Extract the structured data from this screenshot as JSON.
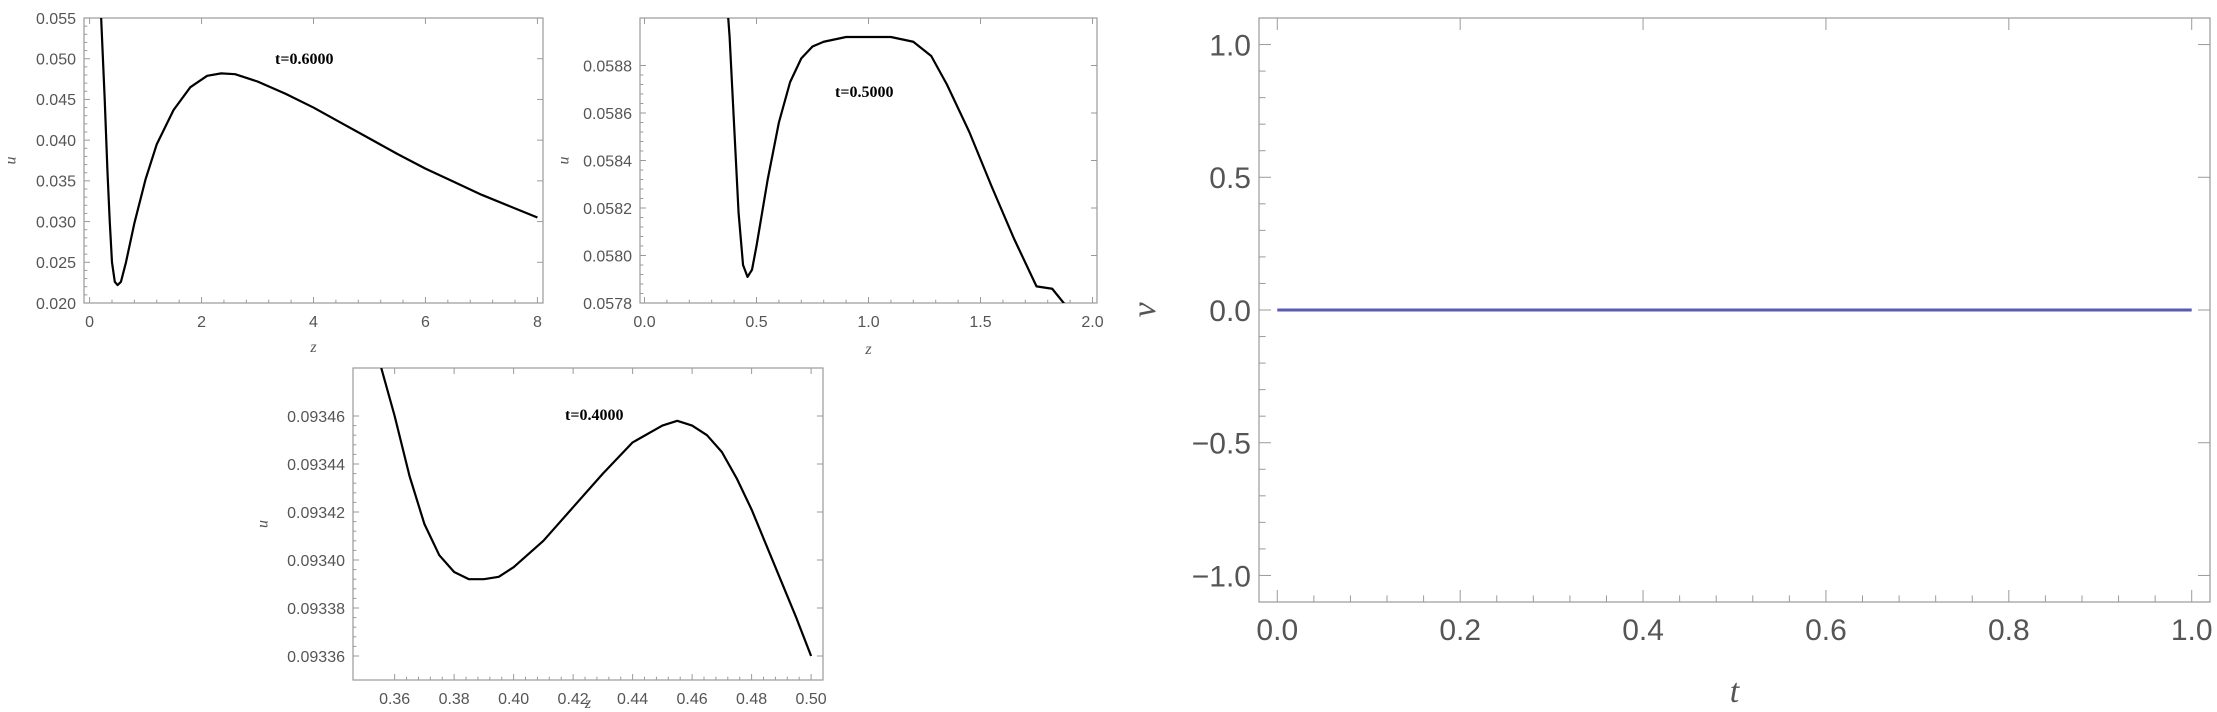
{
  "chart_data": [
    {
      "type": "line",
      "xlabel": "z",
      "ylabel": "u",
      "annotation": "t=0.6000",
      "xlim": [
        -0.1,
        8.1
      ],
      "ylim": [
        0.02,
        0.055
      ],
      "xticks": [
        0,
        2,
        4,
        6,
        8
      ],
      "xtick_labels": [
        "0",
        "2",
        "4",
        "6",
        "8"
      ],
      "yticks": [
        0.02,
        0.025,
        0.03,
        0.035,
        0.04,
        0.045,
        0.05,
        0.055
      ],
      "ytick_labels": [
        "0.020",
        "0.025",
        "0.030",
        "0.035",
        "0.040",
        "0.045",
        "0.050",
        "0.055"
      ],
      "series": [
        {
          "color": "#000000",
          "x": [
            0.2,
            0.27,
            0.32,
            0.36,
            0.4,
            0.45,
            0.5,
            0.56,
            0.65,
            0.8,
            1.0,
            1.2,
            1.5,
            1.8,
            2.1,
            2.35,
            2.6,
            3.0,
            3.5,
            4.0,
            4.5,
            5.0,
            5.5,
            6.0,
            6.5,
            7.0,
            7.5,
            8.0
          ],
          "y": [
            0.056,
            0.045,
            0.036,
            0.03,
            0.025,
            0.0226,
            0.0222,
            0.0226,
            0.025,
            0.0298,
            0.0352,
            0.0395,
            0.0437,
            0.0465,
            0.0479,
            0.0482,
            0.0481,
            0.0472,
            0.0457,
            0.044,
            0.0421,
            0.0402,
            0.0383,
            0.0365,
            0.0349,
            0.0333,
            0.0319,
            0.0305
          ]
        }
      ]
    },
    {
      "type": "line",
      "xlabel": "z",
      "ylabel": "u",
      "annotation": "t=0.5000",
      "xlim": [
        -0.02,
        2.02
      ],
      "ylim": [
        0.0578,
        0.059
      ],
      "xticks": [
        0,
        0.5,
        1.0,
        1.5,
        2.0
      ],
      "xtick_labels": [
        "0.0",
        "0.5",
        "1.0",
        "1.5",
        "2.0"
      ],
      "yticks": [
        0.0578,
        0.058,
        0.0582,
        0.0584,
        0.0586,
        0.0588
      ],
      "ytick_labels": [
        "0.0578",
        "0.0580",
        "0.0582",
        "0.0584",
        "0.0586",
        "0.0588"
      ],
      "series": [
        {
          "color": "#000000",
          "x": [
            0.37,
            0.38,
            0.4,
            0.42,
            0.44,
            0.46,
            0.48,
            0.5,
            0.55,
            0.6,
            0.65,
            0.7,
            0.75,
            0.8,
            0.85,
            0.9,
            1.0,
            1.1,
            1.2,
            1.28,
            1.35,
            1.45,
            1.55,
            1.65,
            1.75,
            1.82,
            1.88
          ],
          "y": [
            0.05905,
            0.05892,
            0.05855,
            0.05818,
            0.05796,
            0.05791,
            0.05794,
            0.05804,
            0.05832,
            0.05856,
            0.05873,
            0.05883,
            0.05888,
            0.0589,
            0.05891,
            0.05892,
            0.05892,
            0.05892,
            0.0589,
            0.05884,
            0.05872,
            0.05852,
            0.05829,
            0.05807,
            0.05787,
            0.05786,
            0.05779
          ]
        }
      ]
    },
    {
      "type": "line",
      "xlabel": "z",
      "ylabel": "u",
      "annotation": "t=0.4000",
      "xlim": [
        0.346,
        0.504
      ],
      "ylim": [
        0.09335,
        0.09348
      ],
      "xticks": [
        0.36,
        0.38,
        0.4,
        0.42,
        0.44,
        0.46,
        0.48,
        0.5
      ],
      "xtick_labels": [
        "0.36",
        "0.38",
        "0.40",
        "0.42",
        "0.44",
        "0.46",
        "0.48",
        "0.50"
      ],
      "yticks": [
        0.09336,
        0.09338,
        0.0934,
        0.09342,
        0.09344,
        0.09346
      ],
      "ytick_labels": [
        "0.09336",
        "0.09338",
        "0.09340",
        "0.09342",
        "0.09344",
        "0.09346"
      ],
      "series": [
        {
          "color": "#000000",
          "x": [
            0.3555,
            0.36,
            0.365,
            0.37,
            0.375,
            0.38,
            0.385,
            0.39,
            0.395,
            0.4,
            0.41,
            0.42,
            0.43,
            0.44,
            0.45,
            0.455,
            0.46,
            0.465,
            0.47,
            0.475,
            0.48,
            0.485,
            0.49,
            0.495,
            0.5
          ],
          "y": [
            0.09348,
            0.09346,
            0.093435,
            0.093415,
            0.093402,
            0.093395,
            0.093392,
            0.093392,
            0.093393,
            0.093397,
            0.093408,
            0.093422,
            0.093436,
            0.093449,
            0.093456,
            0.093458,
            0.093456,
            0.093452,
            0.093445,
            0.093434,
            0.093421,
            0.093406,
            0.093391,
            0.093376,
            0.09336
          ]
        }
      ]
    },
    {
      "type": "line",
      "xlabel": "t",
      "ylabel": "v",
      "xlim": [
        -0.02,
        1.02
      ],
      "ylim": [
        -1.1,
        1.1
      ],
      "xticks": [
        0,
        0.2,
        0.4,
        0.6,
        0.8,
        1.0
      ],
      "xtick_labels": [
        "0.0",
        "0.2",
        "0.4",
        "0.6",
        "0.8",
        "1.0"
      ],
      "yticks": [
        -1.0,
        -0.5,
        0.0,
        0.5,
        1.0
      ],
      "ytick_labels": [
        "−1.0",
        "−0.5",
        "0.0",
        "0.5",
        "1.0"
      ],
      "series": [
        {
          "color": "#5a5ab4",
          "x": [
            0,
            1
          ],
          "y": [
            0,
            0
          ]
        }
      ]
    }
  ]
}
